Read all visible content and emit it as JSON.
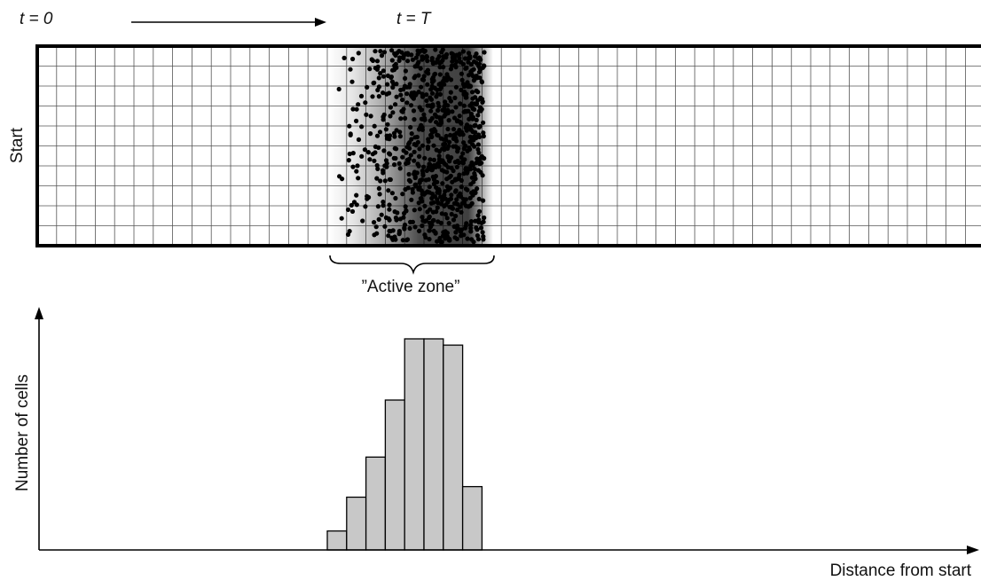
{
  "time_labels": {
    "start": "t = 0",
    "end": "t = T"
  },
  "channel": {
    "start_label": "Start"
  },
  "active_zone_label": "”Active zone”",
  "histogram": {
    "ylabel": "Number of cells",
    "xlabel": "Distance from start",
    "bar_fill": "#c8c8c8",
    "bars": [
      0.09,
      0.25,
      0.44,
      0.71,
      1.0,
      1.0,
      0.97,
      0.3
    ]
  },
  "colors": {
    "ink": "#000000",
    "grid": "#555555"
  }
}
